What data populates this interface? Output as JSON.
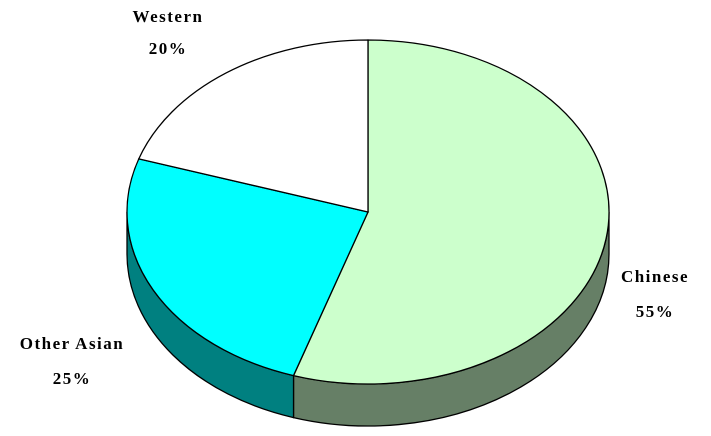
{
  "chart_data": {
    "type": "pie3d",
    "categories": [
      "Chinese",
      "Other Asian",
      "Western"
    ],
    "values": [
      55,
      25,
      20
    ],
    "value_labels": [
      "55%",
      "25%",
      "20%"
    ],
    "colors": [
      "#ccffcc",
      "#00ffff",
      "#ffffff"
    ],
    "side_colors": [
      "#667f66",
      "#008080",
      "#808080"
    ]
  }
}
